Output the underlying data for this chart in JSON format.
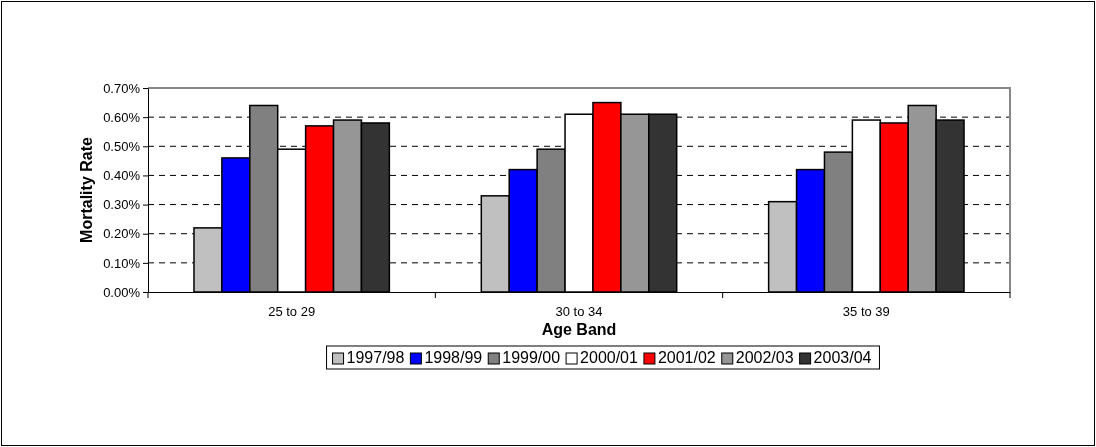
{
  "chart_data": {
    "type": "bar",
    "xlabel": "Age Band",
    "ylabel": "Mortality Rate",
    "categories": [
      "25 to 29",
      "30 to 34",
      "35 to 39"
    ],
    "series": [
      {
        "name": "1997/98",
        "color": "#c0c0c0",
        "values": [
          0.22,
          0.33,
          0.31
        ]
      },
      {
        "name": "1998/99",
        "color": "#0000ff",
        "values": [
          0.46,
          0.42,
          0.42
        ]
      },
      {
        "name": "1999/00",
        "color": "#808080",
        "values": [
          0.64,
          0.49,
          0.48
        ]
      },
      {
        "name": "2000/01",
        "color": "#ffffff",
        "values": [
          0.49,
          0.61,
          0.59
        ]
      },
      {
        "name": "2001/02",
        "color": "#ff0000",
        "values": [
          0.57,
          0.65,
          0.58
        ]
      },
      {
        "name": "2002/03",
        "color": "#969696",
        "values": [
          0.59,
          0.61,
          0.64
        ]
      },
      {
        "name": "2003/04",
        "color": "#333333",
        "values": [
          0.58,
          0.61,
          0.59
        ]
      }
    ],
    "ylim": [
      0,
      0.7
    ],
    "yticks": [
      {
        "value": 0,
        "label": "0.00%"
      },
      {
        "value": 0.1,
        "label": "0.10%"
      },
      {
        "value": 0.2,
        "label": "0.20%"
      },
      {
        "value": 0.3,
        "label": "0.30%"
      },
      {
        "value": 0.4,
        "label": "0.40%"
      },
      {
        "value": 0.5,
        "label": "0.50%"
      },
      {
        "value": 0.6,
        "label": "0.60%"
      },
      {
        "value": 0.7,
        "label": "0.70%"
      }
    ],
    "grid": "y",
    "legend": "bottom"
  }
}
